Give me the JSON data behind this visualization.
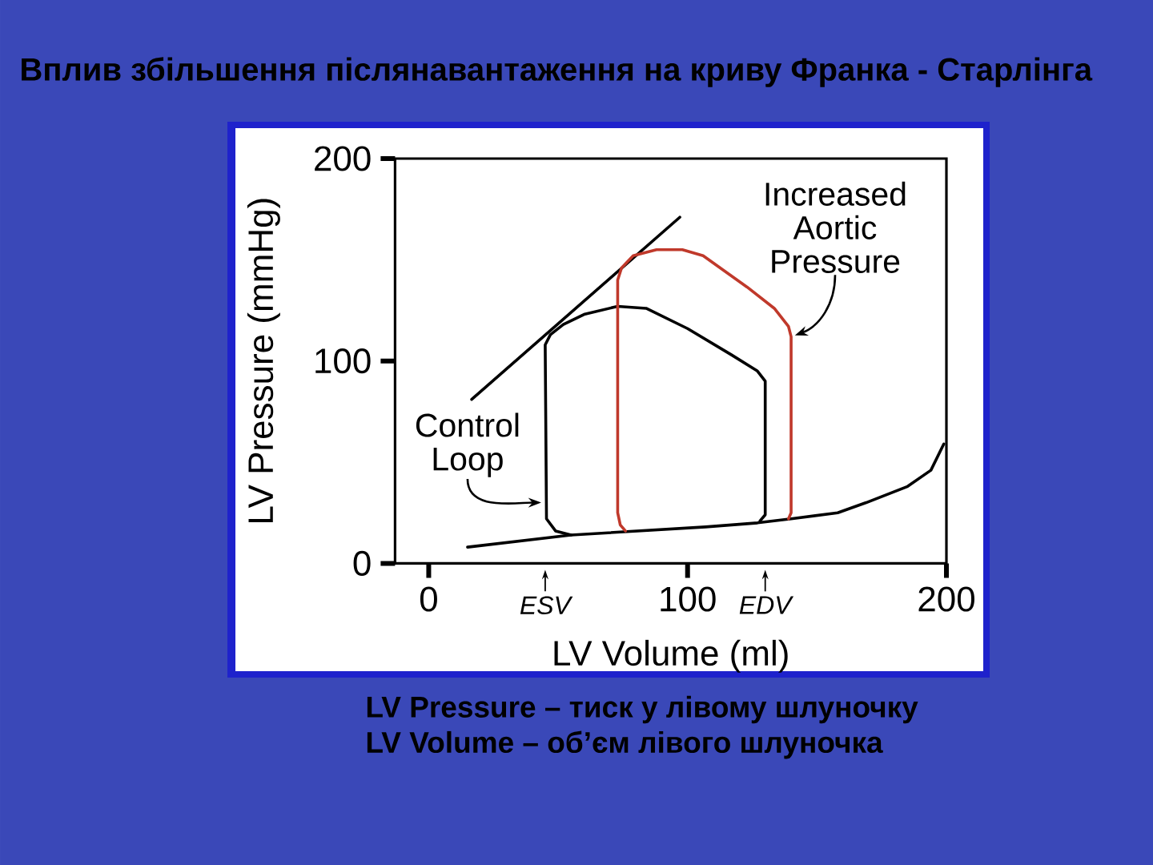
{
  "chart_data": {
    "type": "line",
    "title": "Вплив збільшення післянавантаження на криву Франка - Старлінга",
    "xlabel": "LV Volume (ml)",
    "ylabel": "LV Pressure (mmHg)",
    "xlim": [
      -13,
      200
    ],
    "ylim": [
      0,
      200
    ],
    "xticks": [
      0,
      {
        "value": 45,
        "label": "ESV"
      },
      100,
      {
        "value": 130,
        "label": "EDV"
      },
      200
    ],
    "yticks": [
      0,
      100,
      200
    ],
    "series": [
      {
        "color": "#000000",
        "x": [
          15,
          55,
          107,
          127,
          140,
          158,
          169,
          185,
          194,
          199
        ],
        "values": [
          8,
          14,
          18,
          20,
          22,
          25,
          30,
          38,
          46,
          59
        ]
      },
      {
        "color": "#000000",
        "x": [
          16.6,
          97
        ],
        "values": [
          81,
          171
        ]
      },
      {
        "color": "#000000",
        "x": [
          55,
          49,
          45.5,
          45,
          47,
          52,
          60,
          73,
          84,
          100,
          117,
          127,
          130,
          130,
          128
        ],
        "values": [
          14,
          16,
          22,
          108,
          113,
          118,
          123,
          127,
          126,
          116,
          103,
          95,
          90,
          24,
          21
        ]
      },
      {
        "color": "#c0392b",
        "x": [
          76,
          74,
          73,
          73,
          74.5,
          79,
          88,
          98,
          106,
          123,
          133.5,
          139,
          140,
          140,
          139
        ],
        "values": [
          16,
          19,
          25,
          140,
          146,
          152,
          155,
          155,
          152,
          136.5,
          126,
          117,
          112,
          25,
          22
        ]
      }
    ],
    "annotations": [
      {
        "text": "Control Loop",
        "x": 45,
        "y": 30
      },
      {
        "text": "Increased Aortic Pressure",
        "x": 140,
        "y": 112
      },
      "LV Pressure – тиск у лівому шлуночку",
      "LV Volume – об’єм лівого шлуночка"
    ]
  }
}
